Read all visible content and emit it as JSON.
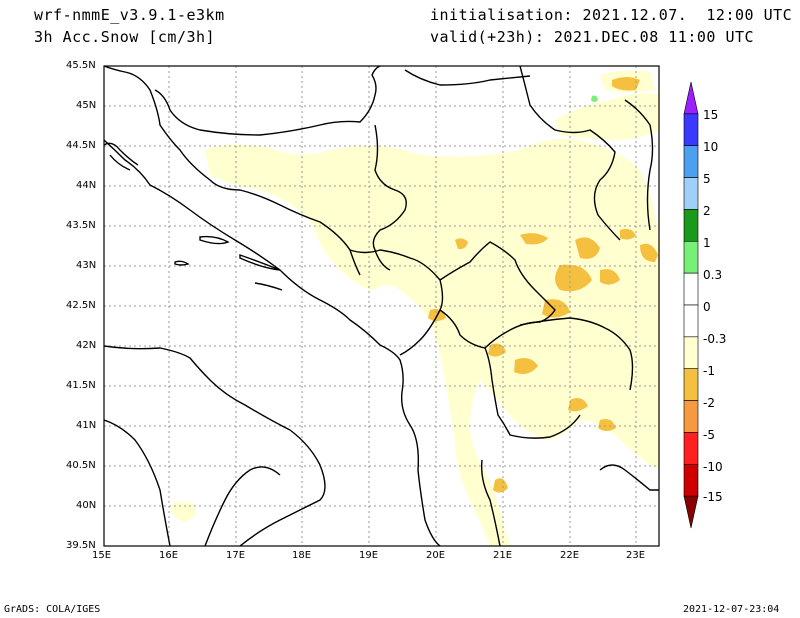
{
  "header": {
    "model": "wrf-nmmE_v3.9.1-e3km",
    "variable": "3h Acc.Snow [cm/3h]",
    "init": "initialisation: 2021.12.07.  12:00 UTC",
    "valid": "valid(+23h): 2021.DEC.08 11:00 UTC"
  },
  "map": {
    "lon_labels": [
      "15E",
      "16E",
      "17E",
      "18E",
      "19E",
      "20E",
      "21E",
      "22E",
      "23E"
    ],
    "lat_labels": [
      "45.5N",
      "45N",
      "44.5N",
      "44N",
      "43.5N",
      "43N",
      "42.5N",
      "42N",
      "41.5N",
      "41N",
      "40.5N",
      "40N",
      "39.5N"
    ]
  },
  "colorbar": {
    "labels": [
      "15",
      "10",
      "5",
      "2",
      "1",
      "0.3",
      "0",
      "-0.3",
      "-1",
      "-2",
      "-5",
      "-10",
      "-15"
    ],
    "colors": [
      "#9a20ff",
      "#3a3aff",
      "#4da0f0",
      "#a0d0f8",
      "#1a9a1a",
      "#78f078",
      "#ffffff",
      "#ffffff",
      "#ffffd0",
      "#f5c040",
      "#f59a40",
      "#ff2020",
      "#d00000",
      "#8a0000"
    ]
  },
  "footer": {
    "left": "GrADS: COLA/IGES",
    "right": "2021-12-07-23:04"
  }
}
